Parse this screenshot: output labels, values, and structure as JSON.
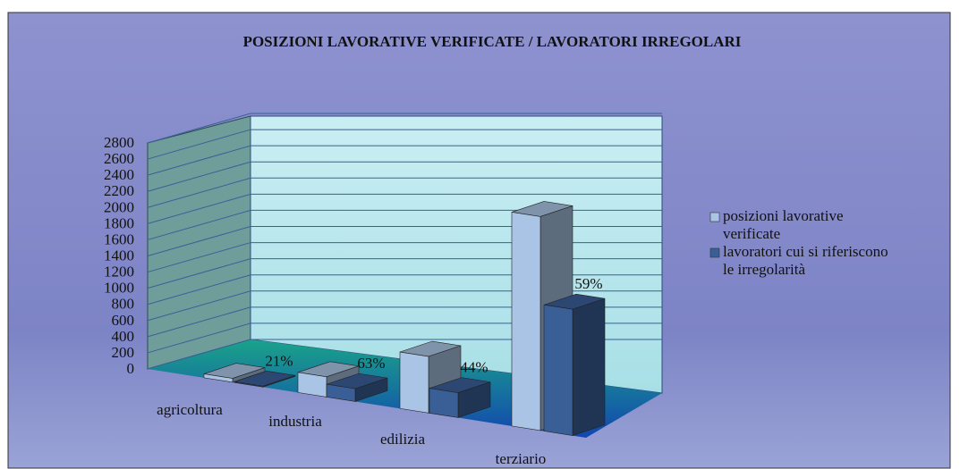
{
  "chart_data": {
    "type": "bar3d",
    "title": "POSIZIONI LAVORATIVE VERIFICATE / LAVORATORI IRREGOLARI",
    "categories": [
      "agricoltura",
      "industria",
      "edilizia",
      "terziario"
    ],
    "series": [
      {
        "name": "posizioni lavorative verificate",
        "color": "#a9c4e4",
        "values": [
          48,
          250,
          700,
          2650
        ]
      },
      {
        "name": "lavoratori cui si riferiscono le irregolarità",
        "color": "#3a5f96",
        "values": [
          10,
          158,
          308,
          1564
        ]
      }
    ],
    "annotations": [
      "21%",
      "63%",
      "44%",
      "59%"
    ],
    "ylim": [
      0,
      2800
    ],
    "yticks": [
      0,
      200,
      400,
      600,
      800,
      1000,
      1200,
      1400,
      1600,
      1800,
      2000,
      2200,
      2400,
      2600,
      2800
    ],
    "grid": true,
    "legend": "right"
  }
}
